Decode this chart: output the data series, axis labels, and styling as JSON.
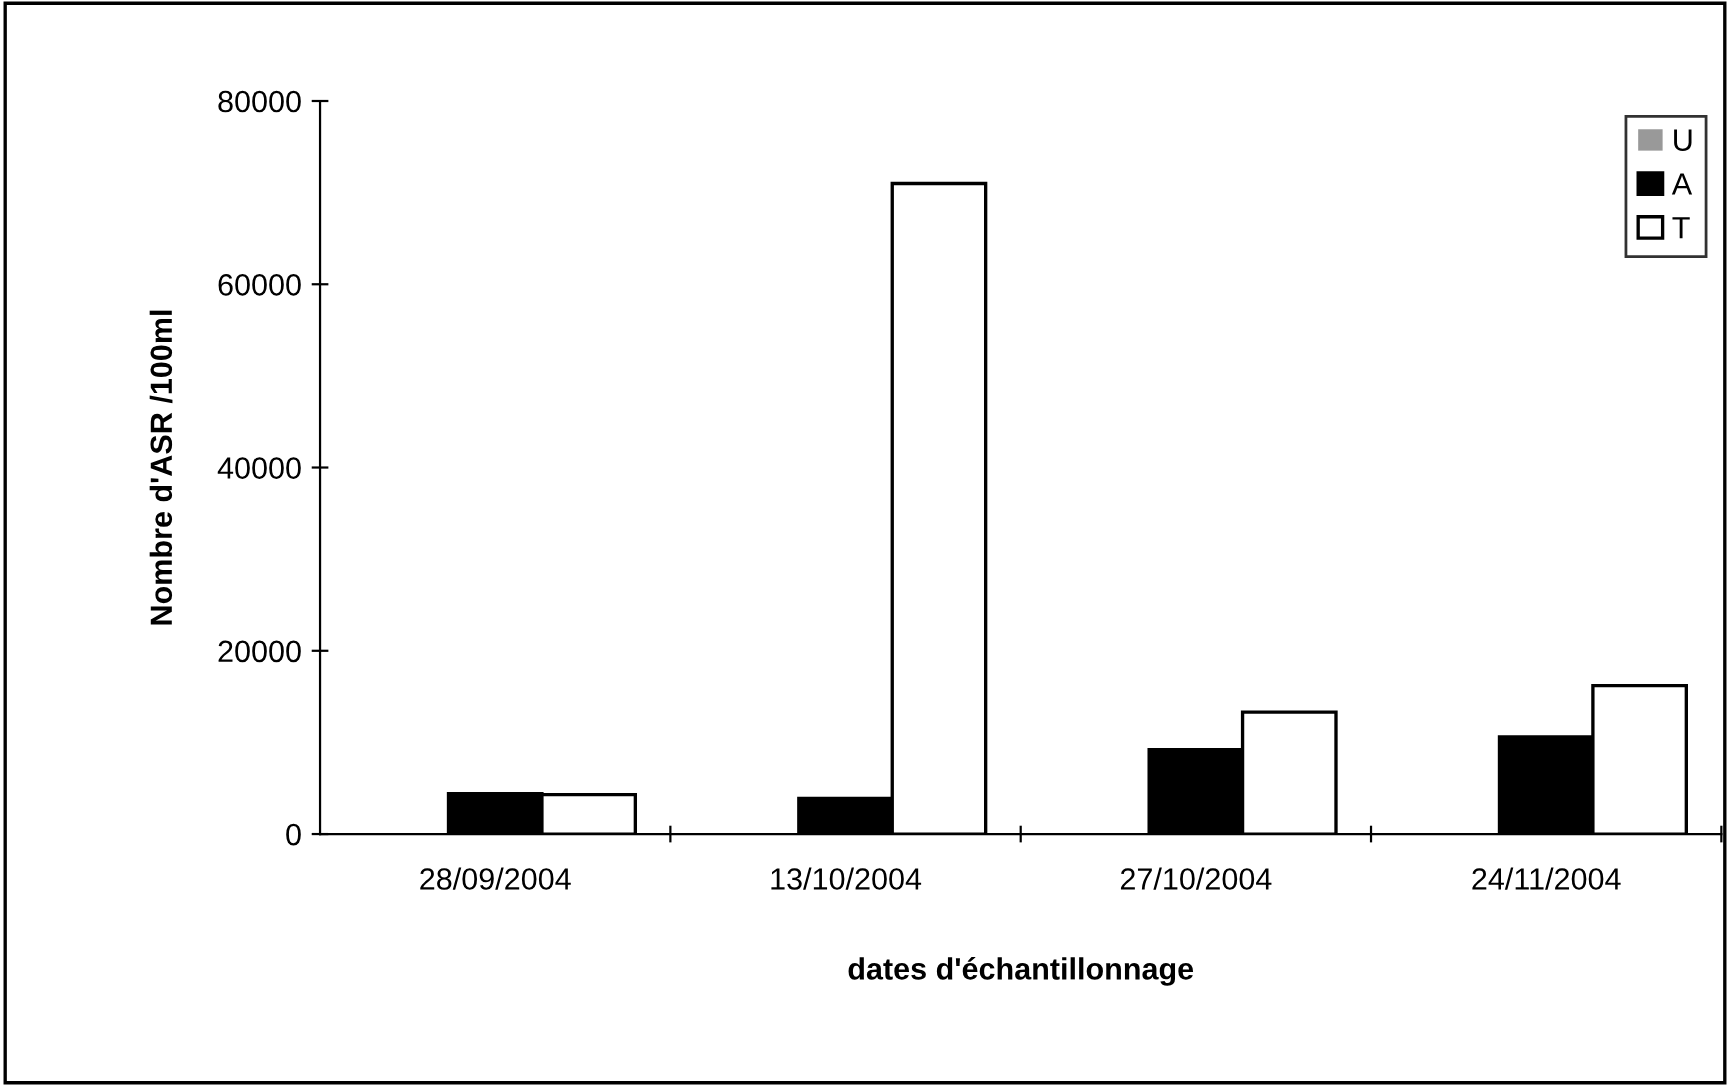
{
  "chart_data": {
    "type": "bar",
    "xlabel": "dates d'échantillonnage",
    "ylabel": "Nombre d'ASR /100ml",
    "categories": [
      "28/09/2004",
      "13/10/2004",
      "27/10/2004",
      "24/11/2004"
    ],
    "series": [
      {
        "name": "U",
        "color": "#999999",
        "values": [
          0,
          0,
          0,
          0
        ]
      },
      {
        "name": "A",
        "color": "#000000",
        "values": [
          4400,
          3900,
          9200,
          10600
        ]
      },
      {
        "name": "T",
        "color": "#ffffff",
        "values": [
          4300,
          71000,
          13300,
          16200
        ]
      }
    ],
    "ylim": [
      0,
      80000
    ],
    "yticks": [
      0,
      20000,
      40000,
      60000,
      80000
    ],
    "grid": false,
    "legend": "top right"
  }
}
